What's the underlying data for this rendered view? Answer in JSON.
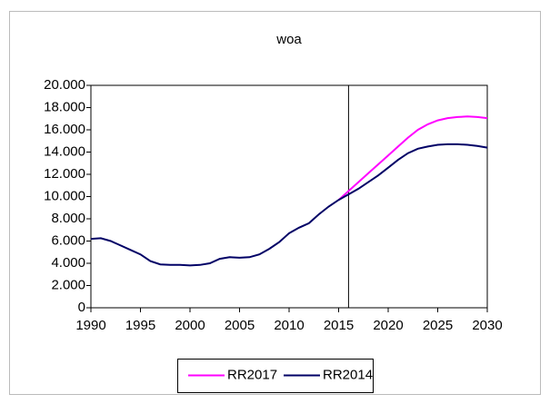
{
  "chart_data": {
    "type": "line",
    "title": "woa",
    "x": [
      1990,
      1991,
      1992,
      1993,
      1994,
      1995,
      1996,
      1997,
      1998,
      1999,
      2000,
      2001,
      2002,
      2003,
      2004,
      2005,
      2006,
      2007,
      2008,
      2009,
      2010,
      2011,
      2012,
      2013,
      2014,
      2015,
      2016,
      2017,
      2018,
      2019,
      2020,
      2021,
      2022,
      2023,
      2024,
      2025,
      2026,
      2027,
      2028,
      2029,
      2030
    ],
    "series": [
      {
        "name": "RR2017",
        "color": "#ff00ff",
        "values": [
          null,
          null,
          null,
          null,
          null,
          null,
          null,
          null,
          null,
          null,
          null,
          null,
          null,
          null,
          null,
          null,
          null,
          null,
          null,
          null,
          null,
          null,
          null,
          null,
          null,
          9700,
          10500,
          11300,
          12100,
          12900,
          13700,
          14500,
          15300,
          16000,
          16500,
          16850,
          17050,
          17150,
          17200,
          17150,
          17050
        ]
      },
      {
        "name": "RR2014",
        "color": "#000066",
        "values": [
          6200,
          6250,
          6000,
          5600,
          5200,
          4800,
          4200,
          3900,
          3850,
          3850,
          3800,
          3850,
          4000,
          4400,
          4550,
          4500,
          4550,
          4800,
          5300,
          5900,
          6700,
          7200,
          7600,
          8400,
          9100,
          9700,
          10200,
          10700,
          11300,
          11900,
          12600,
          13300,
          13900,
          14300,
          14500,
          14650,
          14700,
          14700,
          14650,
          14550,
          14400
        ]
      }
    ],
    "xlim": [
      1990,
      2030
    ],
    "xticks": [
      1990,
      1995,
      2000,
      2005,
      2010,
      2015,
      2020,
      2025,
      2030
    ],
    "ylim": [
      0,
      20000
    ],
    "yticks": [
      0,
      {
        "value": 2000,
        "label": "2.000"
      },
      {
        "value": 4000,
        "label": "4.000"
      },
      {
        "value": 6000,
        "label": "6.000"
      },
      {
        "value": 8000,
        "label": "8.000"
      },
      {
        "value": 10000,
        "label": "10.000"
      },
      {
        "value": 12000,
        "label": "12.000"
      },
      {
        "value": 14000,
        "label": "14.000"
      },
      {
        "value": 16000,
        "label": "16.000"
      },
      {
        "value": 18000,
        "label": "18.000"
      },
      {
        "value": 20000,
        "label": "20.000"
      }
    ],
    "vlines": [
      2016
    ],
    "legend": "bottom"
  }
}
